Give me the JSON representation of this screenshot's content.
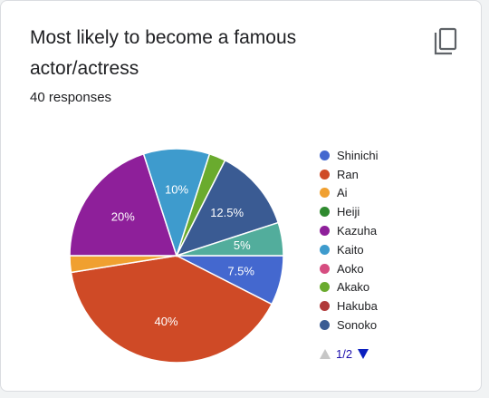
{
  "header": {
    "title": "Most likely to become a famous actor/actress",
    "responses": "40 responses"
  },
  "icons": {
    "copy": "copy-icon"
  },
  "chart_data": {
    "type": "pie",
    "total_responses": 40,
    "slices": [
      {
        "name": "Shinichi",
        "value": 7.5,
        "color": "#4468cf",
        "label": "7.5%"
      },
      {
        "name": "Ran",
        "value": 40,
        "color": "#cf4a26",
        "label": "40%"
      },
      {
        "name": "Ai",
        "value": 2.5,
        "color": "#f0a030",
        "label": ""
      },
      {
        "name": "Heiji",
        "value": 0,
        "color": "#2f8a2f",
        "label": ""
      },
      {
        "name": "Kazuha",
        "value": 20,
        "color": "#8e1f9a",
        "label": "20%"
      },
      {
        "name": "Kaito",
        "value": 10,
        "color": "#3e9bcd",
        "label": "10%"
      },
      {
        "name": "Aoko",
        "value": 0,
        "color": "#d64d80",
        "label": ""
      },
      {
        "name": "Akako",
        "value": 2.5,
        "color": "#6aab2e",
        "label": ""
      },
      {
        "name": "Hakuba",
        "value": 0,
        "color": "#b03a3a",
        "label": ""
      },
      {
        "name": "Sonoko",
        "value": 12.5,
        "color": "#3a5b93",
        "label": "12.5%"
      },
      {
        "name": "",
        "value": 5,
        "color": "#52ad9c",
        "label": "5%"
      }
    ],
    "legend": {
      "placement": "right",
      "entries": [
        "Shinichi",
        "Ran",
        "Ai",
        "Heiji",
        "Kazuha",
        "Kaito",
        "Aoko",
        "Akako",
        "Hakuba",
        "Sonoko"
      ],
      "colors": [
        "#4468cf",
        "#cf4a26",
        "#f0a030",
        "#2f8a2f",
        "#8e1f9a",
        "#3e9bcd",
        "#d64d80",
        "#6aab2e",
        "#b03a3a",
        "#3a5b93"
      ]
    }
  },
  "pagination": {
    "page": "1/2"
  }
}
